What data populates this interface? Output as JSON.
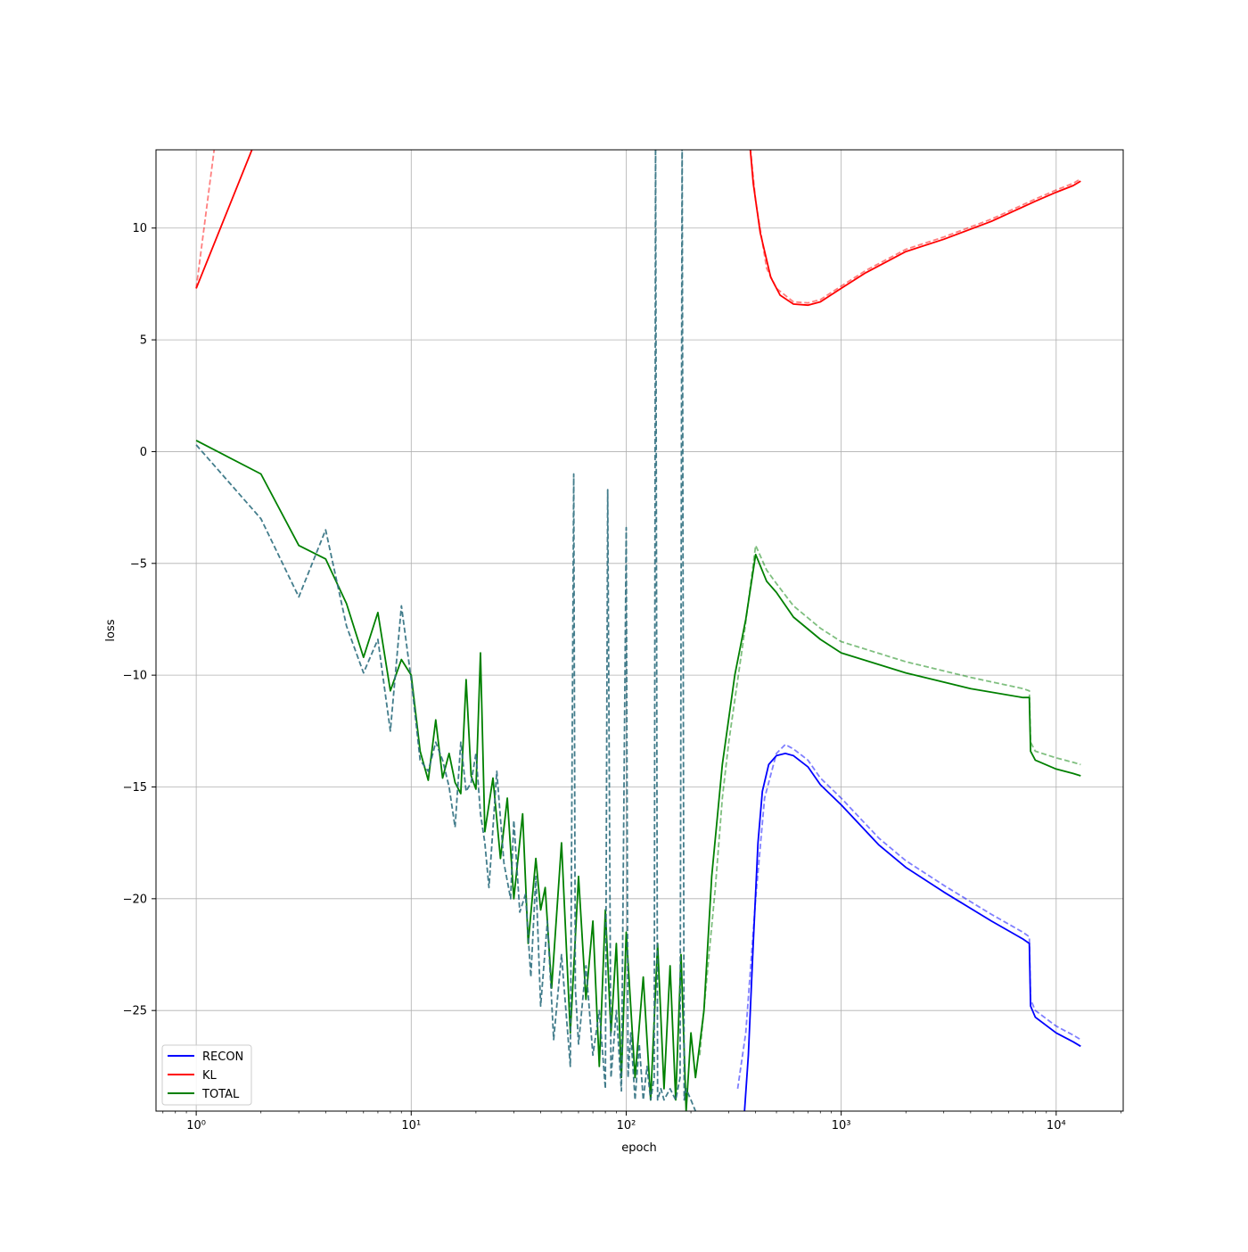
{
  "chart_data": {
    "type": "line",
    "title": "",
    "xlabel": "epoch",
    "ylabel": "loss",
    "xscale": "log",
    "xlim": [
      0.65,
      20500
    ],
    "ylim": [
      -29.5,
      13.5
    ],
    "grid": true,
    "legend_position": "lower-left",
    "x_ticks": [
      {
        "value": 1,
        "label": "10⁰"
      },
      {
        "value": 10,
        "label": "10¹"
      },
      {
        "value": 100,
        "label": "10²"
      },
      {
        "value": 1000,
        "label": "10³"
      },
      {
        "value": 10000,
        "label": "10⁴"
      }
    ],
    "y_ticks": [
      {
        "value": 10,
        "label": "10"
      },
      {
        "value": 5,
        "label": "5"
      },
      {
        "value": 0,
        "label": "0"
      },
      {
        "value": -5,
        "label": "−5"
      },
      {
        "value": -10,
        "label": "−10"
      },
      {
        "value": -15,
        "label": "−15"
      },
      {
        "value": -20,
        "label": "−20"
      },
      {
        "value": -25,
        "label": "−25"
      }
    ],
    "legend": [
      {
        "name": "RECON",
        "color": "#0000ff"
      },
      {
        "name": "KL",
        "color": "#ff0000"
      },
      {
        "name": "TOTAL",
        "color": "#008000"
      }
    ],
    "series": [
      {
        "key": "kl_train",
        "color": "#ff0000",
        "style": "solid",
        "opacity": 1,
        "x": [
          1,
          2,
          370,
          390,
          420,
          470,
          520,
          600,
          700,
          800,
          1000,
          1300,
          2000,
          3000,
          5000,
          8000,
          10000,
          12000,
          13000
        ],
        "y": [
          7.3,
          14.5,
          14.5,
          12.0,
          9.8,
          7.8,
          7.0,
          6.6,
          6.55,
          6.7,
          7.3,
          8.0,
          8.95,
          9.5,
          10.3,
          11.2,
          11.6,
          11.9,
          12.1
        ]
      },
      {
        "key": "kl_val",
        "color": "#ff0000",
        "style": "dashed",
        "opacity": 0.5,
        "x": [
          1,
          1.25,
          370,
          400,
          450,
          500,
          600,
          700,
          800,
          1000,
          1300,
          2000,
          3000,
          5000,
          8000,
          10000,
          12000,
          13000
        ],
        "y": [
          7.3,
          14.5,
          14.5,
          11.2,
          8.2,
          7.3,
          6.7,
          6.65,
          6.8,
          7.4,
          8.1,
          9.05,
          9.6,
          10.4,
          11.3,
          11.7,
          12.0,
          12.2
        ]
      },
      {
        "key": "total_train",
        "color": "#008000",
        "style": "solid",
        "opacity": 1,
        "x": [
          1,
          2,
          3,
          4,
          5,
          6,
          7,
          8,
          9,
          10,
          11,
          12,
          13,
          14,
          15,
          16,
          17,
          18,
          19,
          20,
          21,
          22,
          24,
          26,
          28,
          30,
          33,
          35,
          38,
          40,
          42,
          45,
          50,
          55,
          60,
          65,
          70,
          75,
          80,
          85,
          90,
          95,
          100,
          110,
          120,
          130,
          140,
          150,
          160,
          170,
          180,
          190,
          200,
          210,
          220,
          230,
          250,
          280,
          320,
          360,
          400,
          450,
          500,
          600,
          800,
          1000,
          2000,
          4000,
          7000,
          7500,
          7600,
          8000,
          10000,
          12000,
          13000
        ],
        "y": [
          0.5,
          -1.0,
          -4.2,
          -4.8,
          -6.8,
          -9.2,
          -7.2,
          -10.7,
          -9.3,
          -10.0,
          -13.4,
          -14.7,
          -12.0,
          -14.6,
          -13.5,
          -14.8,
          -15.3,
          -10.2,
          -14.5,
          -15.1,
          -9.0,
          -17.0,
          -14.6,
          -18.2,
          -15.5,
          -20.0,
          -16.2,
          -22.0,
          -18.2,
          -20.5,
          -19.5,
          -24.0,
          -17.5,
          -26.0,
          -19.0,
          -24.5,
          -21.0,
          -27.5,
          -20.5,
          -26.0,
          -22.0,
          -28.0,
          -21.5,
          -28.0,
          -23.5,
          -29.0,
          -22.0,
          -28.5,
          -23.0,
          -29.0,
          -22.5,
          -29.5,
          -26.0,
          -28.0,
          -26.5,
          -25.0,
          -19.0,
          -14.0,
          -10.0,
          -7.5,
          -4.6,
          -5.8,
          -6.3,
          -7.4,
          -8.4,
          -9.0,
          -9.9,
          -10.6,
          -11.0,
          -11.0,
          -13.4,
          -13.8,
          -14.2,
          -14.4,
          -14.5
        ]
      },
      {
        "key": "total_val",
        "color": "#008000",
        "style": "dashed",
        "opacity": 0.5,
        "x": [
          220,
          240,
          260,
          280,
          300,
          350,
          400,
          450,
          500,
          600,
          800,
          1000,
          2000,
          4000,
          7000,
          7500,
          7600,
          8000,
          10000,
          12000,
          13000
        ],
        "y": [
          -27.0,
          -23.0,
          -19.5,
          -15.5,
          -13.0,
          -8.5,
          -4.2,
          -5.3,
          -5.9,
          -6.9,
          -7.9,
          -8.5,
          -9.4,
          -10.1,
          -10.6,
          -10.7,
          -13.0,
          -13.4,
          -13.7,
          -13.9,
          -14.0
        ]
      },
      {
        "key": "recon_train",
        "color": "#0000ff",
        "style": "solid",
        "opacity": 1,
        "x": [
          355,
          370,
          390,
          410,
          430,
          460,
          500,
          550,
          600,
          700,
          800,
          1000,
          1500,
          2000,
          3000,
          5000,
          7000,
          7500,
          7600,
          8000,
          10000,
          12000,
          13000
        ],
        "y": [
          -29.5,
          -27.0,
          -22.0,
          -17.5,
          -15.2,
          -14.0,
          -13.6,
          -13.5,
          -13.6,
          -14.1,
          -14.9,
          -15.8,
          -17.6,
          -18.6,
          -19.7,
          -21.0,
          -21.8,
          -22.0,
          -24.8,
          -25.3,
          -26.0,
          -26.4,
          -26.6
        ]
      },
      {
        "key": "recon_val",
        "color": "#0000ff",
        "style": "dashed",
        "opacity": 0.5,
        "x": [
          330,
          360,
          400,
          440,
          500,
          550,
          600,
          700,
          800,
          1000,
          1500,
          2000,
          3000,
          5000,
          7000,
          7500,
          7600,
          8000,
          10000,
          12000,
          13000
        ],
        "y": [
          -28.5,
          -26.0,
          -20.0,
          -15.5,
          -13.5,
          -13.1,
          -13.3,
          -13.8,
          -14.6,
          -15.5,
          -17.3,
          -18.3,
          -19.4,
          -20.7,
          -21.5,
          -21.7,
          -24.5,
          -25.0,
          -25.7,
          -26.1,
          -26.3
        ]
      },
      {
        "key": "recon_early",
        "color": "#2f6f7f",
        "style": "dashed",
        "opacity": 0.9,
        "x": [
          1,
          2,
          3,
          4,
          5,
          6,
          7,
          8,
          9,
          10,
          11,
          12,
          13,
          14,
          15,
          16,
          17,
          18,
          19,
          20,
          21,
          22,
          23,
          25,
          27,
          29,
          30,
          32,
          34,
          36,
          38,
          40,
          43,
          46,
          50,
          55,
          57,
          58,
          60,
          65,
          70,
          75,
          80,
          82,
          85,
          90,
          95,
          100,
          102,
          105,
          110,
          115,
          120,
          125,
          130,
          135,
          137,
          140,
          145,
          150,
          160,
          170,
          178,
          182,
          186,
          190,
          200,
          210
        ],
        "y": [
          0.3,
          -3.0,
          -6.5,
          -3.5,
          -7.8,
          -9.9,
          -8.4,
          -12.5,
          -6.9,
          -10.2,
          -13.8,
          -14.3,
          -13.0,
          -13.8,
          -15.0,
          -16.8,
          -13.0,
          -15.2,
          -14.8,
          -13.5,
          -16.2,
          -17.5,
          -19.5,
          -14.3,
          -18.4,
          -20.0,
          -16.5,
          -20.6,
          -19.8,
          -23.5,
          -19.0,
          -24.8,
          -21.0,
          -26.3,
          -22.5,
          -27.5,
          -1.0,
          -24.0,
          -26.5,
          -23.0,
          -27.0,
          -25.0,
          -28.5,
          -1.7,
          -28.0,
          -25.0,
          -28.6,
          -3.4,
          -28.0,
          -26.0,
          -29.0,
          -26.5,
          -29.0,
          -27.5,
          -29.0,
          -28.0,
          14.5,
          -29.0,
          -28.5,
          -29.0,
          -28.5,
          -29.0,
          -28.0,
          14.5,
          -29.0,
          -28.5,
          -29.0,
          -29.5
        ]
      }
    ]
  }
}
